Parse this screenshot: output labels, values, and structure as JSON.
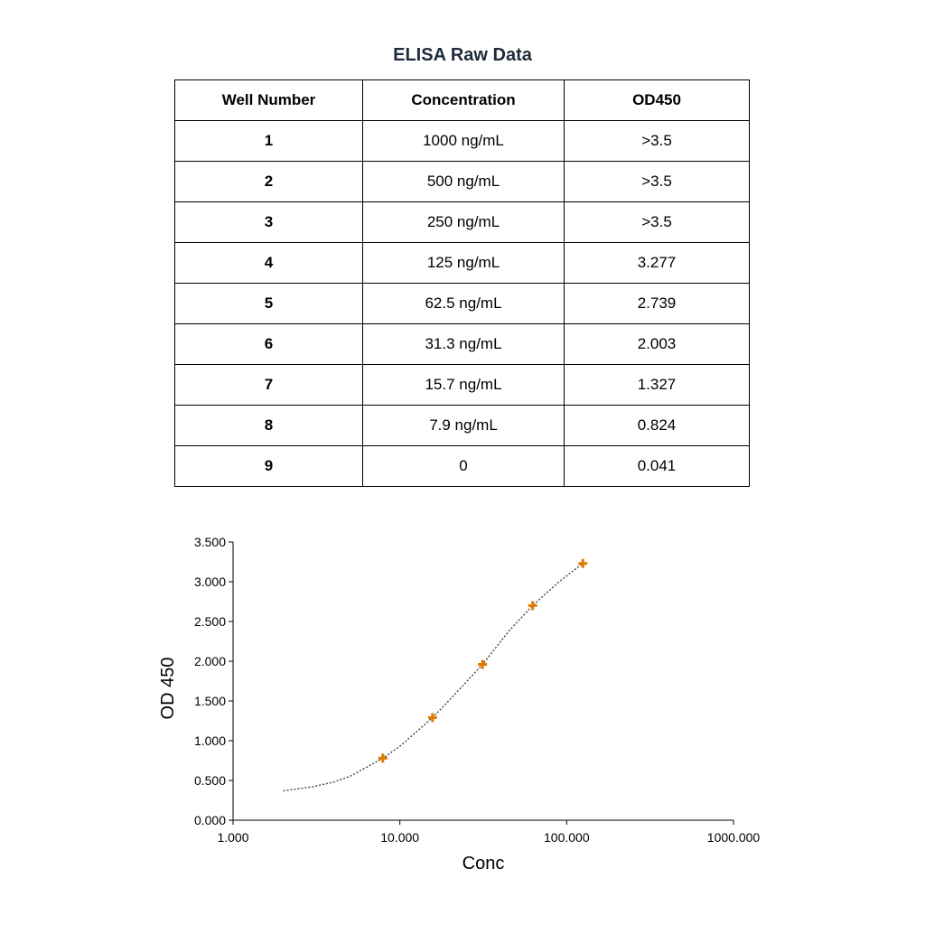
{
  "table": {
    "title": "ELISA Raw Data",
    "headers": [
      "Well Number",
      "Concentration",
      "OD450"
    ],
    "rows": [
      [
        "1",
        "1000 ng/mL",
        ">3.5"
      ],
      [
        "2",
        "500 ng/mL",
        ">3.5"
      ],
      [
        "3",
        "250 ng/mL",
        ">3.5"
      ],
      [
        "4",
        "125 ng/mL",
        "3.277"
      ],
      [
        "5",
        "62.5 ng/mL",
        "2.739"
      ],
      [
        "6",
        "31.3 ng/mL",
        "2.003"
      ],
      [
        "7",
        "15.7 ng/mL",
        "1.327"
      ],
      [
        "8",
        "7.9 ng/mL",
        "0.824"
      ],
      [
        "9",
        "0",
        "0.041"
      ]
    ]
  },
  "chart_data": {
    "type": "scatter",
    "xlabel": "Conc",
    "ylabel": "OD 450",
    "x_scale": "log",
    "xlim": [
      1,
      1000
    ],
    "ylim": [
      0,
      3.5
    ],
    "x_ticks": [
      "1.000",
      "10.000",
      "100.000",
      "1000.000"
    ],
    "y_ticks": [
      "0.000",
      "0.500",
      "1.000",
      "1.500",
      "2.000",
      "2.500",
      "3.000",
      "3.500"
    ],
    "grid": false,
    "series": [
      {
        "x": [
          7.9,
          15.7,
          31.3,
          62.5,
          125
        ],
        "y": [
          0.78,
          1.29,
          1.96,
          2.7,
          3.23
        ],
        "marker_color": "#e07b00",
        "marker": "plus"
      }
    ],
    "fit_curve": {
      "x": [
        2,
        3,
        4,
        5,
        7.9,
        10,
        15.7,
        20,
        31.3,
        45,
        62.5,
        90,
        125
      ],
      "y": [
        0.37,
        0.42,
        0.48,
        0.55,
        0.78,
        0.93,
        1.29,
        1.52,
        1.96,
        2.38,
        2.7,
        3.0,
        3.23
      ],
      "color": "#444444",
      "style": "dotted"
    }
  }
}
